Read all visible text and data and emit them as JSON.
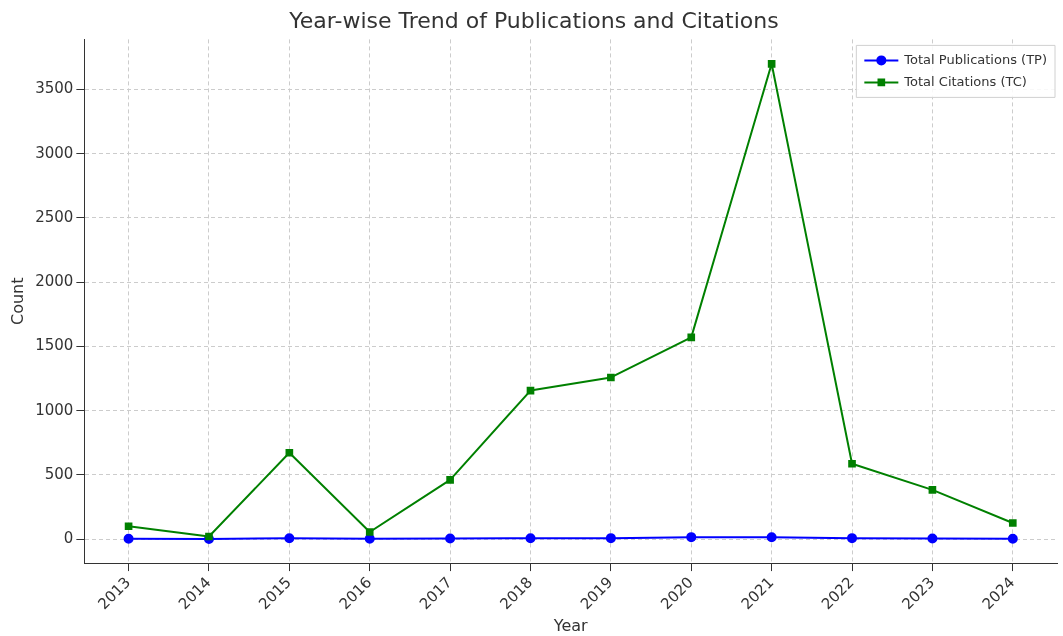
{
  "chart_data": {
    "type": "line",
    "title": "Year-wise Trend of Publications and Citations",
    "xlabel": "Year",
    "ylabel": "Count",
    "x": [
      2013,
      2014,
      2015,
      2016,
      2017,
      2018,
      2019,
      2020,
      2021,
      2022,
      2023,
      2024
    ],
    "series": [
      {
        "name": "Total Publications (TP)",
        "color": "#0000ff",
        "marker": "circle",
        "values": [
          2,
          1,
          6,
          2,
          4,
          6,
          7,
          15,
          14,
          7,
          5,
          2
        ]
      },
      {
        "name": "Total Citations (TC)",
        "color": "#008000",
        "marker": "square",
        "values": [
          100,
          20,
          672,
          55,
          461,
          1156,
          1258,
          1570,
          3700,
          586,
          383,
          125
        ]
      }
    ],
    "xlim": [
      2012.45,
      2024.55
    ],
    "xticks": [
      2013,
      2014,
      2015,
      2016,
      2017,
      2018,
      2019,
      2020,
      2021,
      2022,
      2023,
      2024
    ],
    "ylim": [
      -187,
      3890
    ],
    "yticks": [
      0,
      500,
      1000,
      1500,
      2000,
      2500,
      3000,
      3500
    ],
    "grid": true,
    "legend": "top right",
    "line_style": "solid"
  }
}
